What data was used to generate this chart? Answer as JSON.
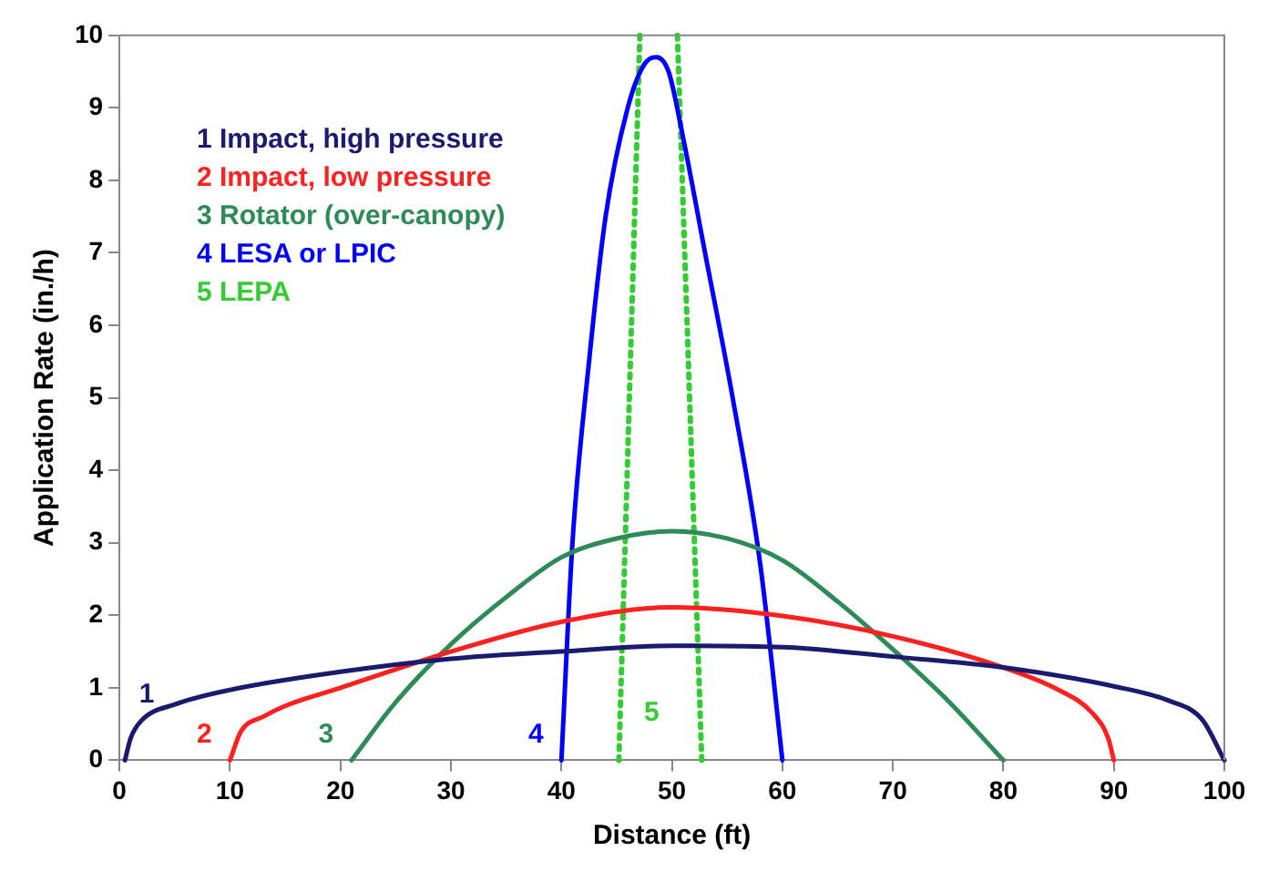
{
  "chart_data": {
    "type": "line",
    "xlabel": "Distance (ft)",
    "ylabel": "Application Rate (in./h)",
    "xlim": [
      0,
      100
    ],
    "ylim": [
      0,
      10
    ],
    "xticks": [
      0,
      10,
      20,
      30,
      40,
      50,
      60,
      70,
      80,
      90,
      100
    ],
    "yticks": [
      0,
      1,
      2,
      3,
      4,
      5,
      6,
      7,
      8,
      9,
      10
    ],
    "grid": false,
    "legend": "top left",
    "marker": "none",
    "series": [
      {
        "name": "1 Impact, high pressure",
        "color": "#1a1a6e",
        "line_style": "solid",
        "x": [
          0.5,
          1,
          2,
          5,
          10,
          20,
          30,
          40,
          50,
          60,
          70,
          80,
          90,
          95,
          98,
          100
        ],
        "values": [
          0,
          0.3,
          0.55,
          0.77,
          0.97,
          1.22,
          1.4,
          1.5,
          1.58,
          1.56,
          1.43,
          1.28,
          1.02,
          0.82,
          0.56,
          0
        ]
      },
      {
        "name": "2 Impact, low pressure",
        "color": "#ff2020",
        "line_style": "solid",
        "x": [
          10,
          11,
          13,
          15,
          20,
          27.5,
          30,
          40,
          50,
          60,
          70,
          80,
          85,
          88,
          89.5,
          90
        ],
        "values": [
          0,
          0.4,
          0.6,
          0.75,
          1,
          1.38,
          1.5,
          1.91,
          2.11,
          1.99,
          1.71,
          1.28,
          0.97,
          0.66,
          0.3,
          0
        ]
      },
      {
        "name": "3 Rotator (over-canopy)",
        "color": "#2e8b57",
        "line_style": "solid",
        "x": [
          21,
          25,
          30,
          35,
          40,
          45,
          50,
          55,
          60,
          65,
          70,
          75,
          80
        ],
        "values": [
          0,
          0.8,
          1.6,
          2.25,
          2.8,
          3.06,
          3.16,
          3.06,
          2.76,
          2.19,
          1.53,
          0.82,
          0
        ]
      },
      {
        "name": "4 LESA or LPIC",
        "color": "#0000ff",
        "line_style": "solid",
        "x": [
          40,
          41,
          42.5,
          44,
          46,
          47.5,
          48.6,
          49.7,
          51,
          53,
          55.5,
          58,
          60
        ],
        "values": [
          0,
          3,
          5.5,
          7.5,
          9,
          9.6,
          9.7,
          9.5,
          8.6,
          7,
          5,
          2.7,
          0
        ]
      },
      {
        "name": "5 LEPA",
        "color": "#33cc33",
        "line_style": "dotted",
        "x": [
          45.2,
          47.1,
          48.8,
          50.5,
          52.7
        ],
        "values": [
          0,
          10,
          null,
          10,
          0
        ]
      }
    ],
    "annotations": [
      "1",
      "2",
      "3",
      "4",
      "5"
    ]
  }
}
